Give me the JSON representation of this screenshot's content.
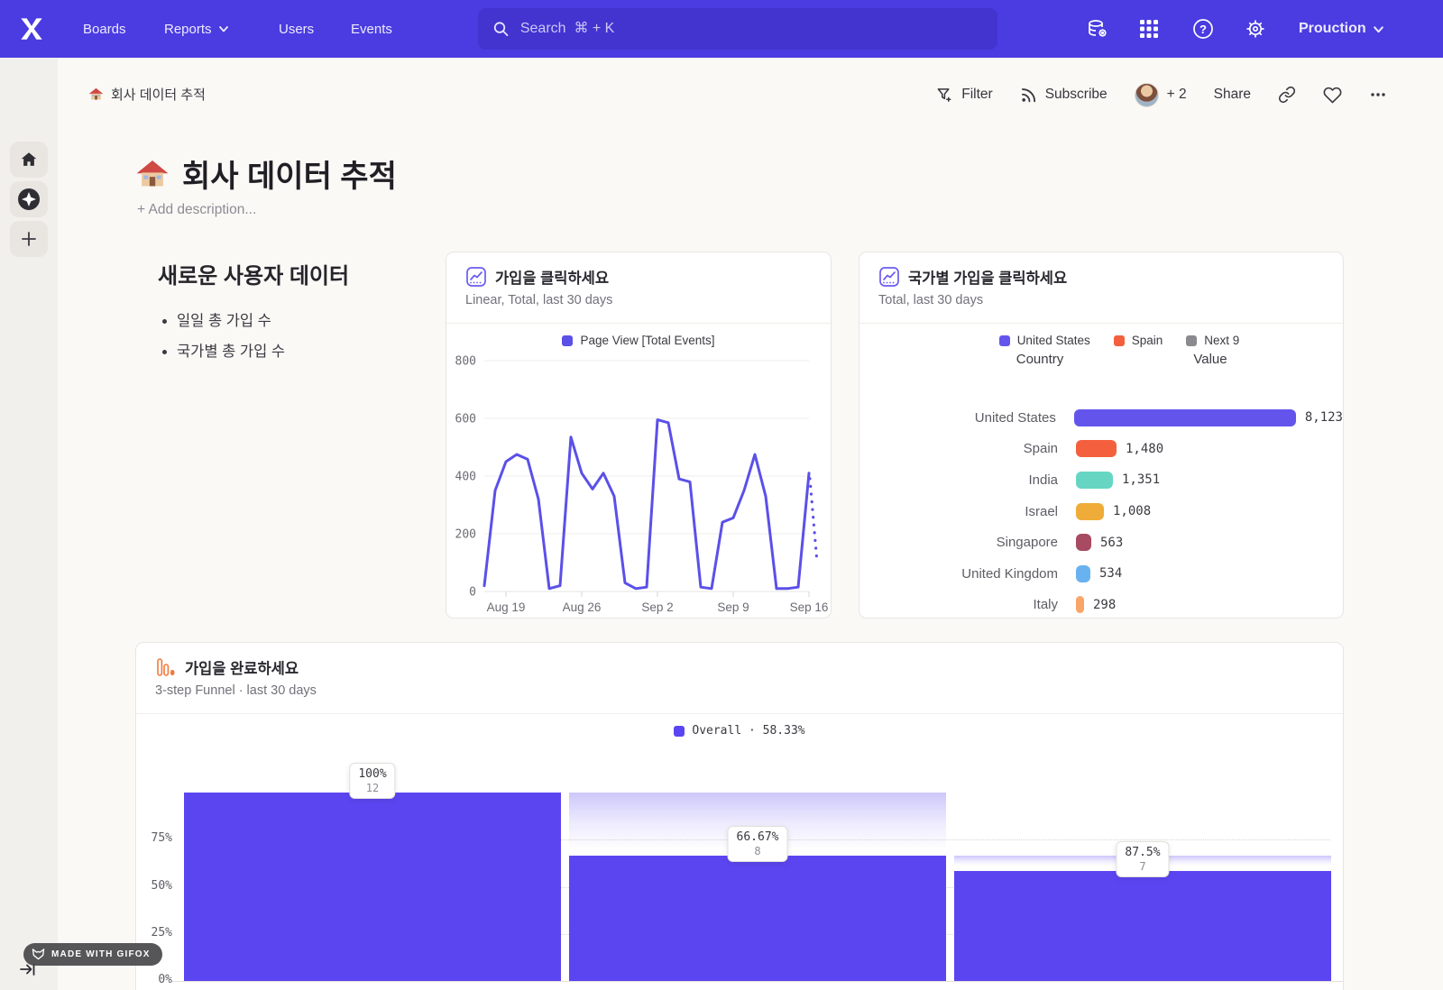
{
  "nav": {
    "items": [
      {
        "label": "Boards"
      },
      {
        "label": "Reports",
        "has_chevron": true
      },
      {
        "label": "Users"
      },
      {
        "label": "Events"
      }
    ],
    "search_placeholder": "Search  ⌘ + K",
    "project": {
      "name": "Prouction"
    }
  },
  "toolbar": {
    "breadcrumb_emoji": "🏠",
    "breadcrumb": "회사 데이터 추적",
    "filter_label": "Filter",
    "subscribe_label": "Subscribe",
    "collaborators_label": "+ 2",
    "share_label": "Share"
  },
  "board": {
    "title_emoji": "🏠",
    "title": "회사 데이터 추적",
    "add_description": "+ Add description..."
  },
  "text_card": {
    "heading": "새로운 사용자 데이터",
    "bullets": [
      "일일 총 가입 수",
      "국가별 총 가입 수"
    ]
  },
  "chart_data": [
    {
      "id": "signup-clicks-line",
      "type": "line",
      "title": "가입을 클릭하세요",
      "subtitle": "Linear, Total, last 30 days",
      "legend_position": "top-center",
      "grid": true,
      "ylim": [
        0,
        800
      ],
      "y_ticks": [
        0,
        200,
        400,
        600,
        800
      ],
      "x_tick_labels": [
        "Aug 19",
        "Aug 26",
        "Sep 2",
        "Sep 9",
        "Sep 16"
      ],
      "x_tick_indices": [
        2,
        9,
        16,
        23,
        30
      ],
      "x_range": "Aug 17 – Sep 16, daily",
      "incomplete_tail": true,
      "series": [
        {
          "name": "Page View [Total Events]",
          "color": "#5b50e8",
          "values": [
            20,
            350,
            450,
            475,
            458,
            320,
            10,
            20,
            535,
            410,
            355,
            410,
            330,
            30,
            10,
            15,
            595,
            585,
            390,
            380,
            15,
            10,
            240,
            255,
            350,
            475,
            330,
            10,
            10,
            15,
            410
          ]
        }
      ]
    },
    {
      "id": "signups-by-country",
      "type": "bar",
      "title": "국가별 가입을 클릭하세요",
      "subtitle": "Total, last 30 days",
      "columns": [
        "Country",
        "Value"
      ],
      "legend": [
        {
          "label": "United States",
          "color": "#6355ec"
        },
        {
          "label": "Spain",
          "color": "#f4603d"
        },
        {
          "label": "Next 9",
          "color": "#8a8a8f"
        }
      ],
      "categories": [
        "United States",
        "Spain",
        "India",
        "Israel",
        "Singapore",
        "United Kingdom",
        "Italy"
      ],
      "values": [
        8123,
        1480,
        1351,
        1008,
        563,
        534,
        298
      ],
      "value_labels": [
        "8,123",
        "1,480",
        "1,351",
        "1,008",
        "563",
        "534",
        "298"
      ],
      "colors": [
        "#6355ec",
        "#f4603d",
        "#66d6c3",
        "#f0ac38",
        "#a84a62",
        "#68b2f0",
        "#f9a569"
      ],
      "max_value": 8123
    },
    {
      "id": "signup-funnel",
      "type": "funnel",
      "title": "가입을 완료하세요",
      "subtitle": "3-step Funnel · last 30 days",
      "legend": "Overall · 58.33%",
      "color": "#5b45f0",
      "y_ticks": [
        "75%",
        "50%",
        "25%",
        "0%"
      ],
      "steps": [
        {
          "pct_label": "100%",
          "count_label": "12",
          "conversion_pct": 100,
          "top_pct": 100,
          "prev_top_pct": 100
        },
        {
          "pct_label": "66.67%",
          "count_label": "8",
          "conversion_pct": 66.67,
          "top_pct": 66.67,
          "prev_top_pct": 100
        },
        {
          "pct_label": "87.5%",
          "count_label": "7",
          "conversion_pct": 87.5,
          "top_pct": 58.33,
          "prev_top_pct": 66.67
        }
      ]
    }
  ],
  "footer_badge": {
    "label": "MADE WITH GIFOX"
  }
}
